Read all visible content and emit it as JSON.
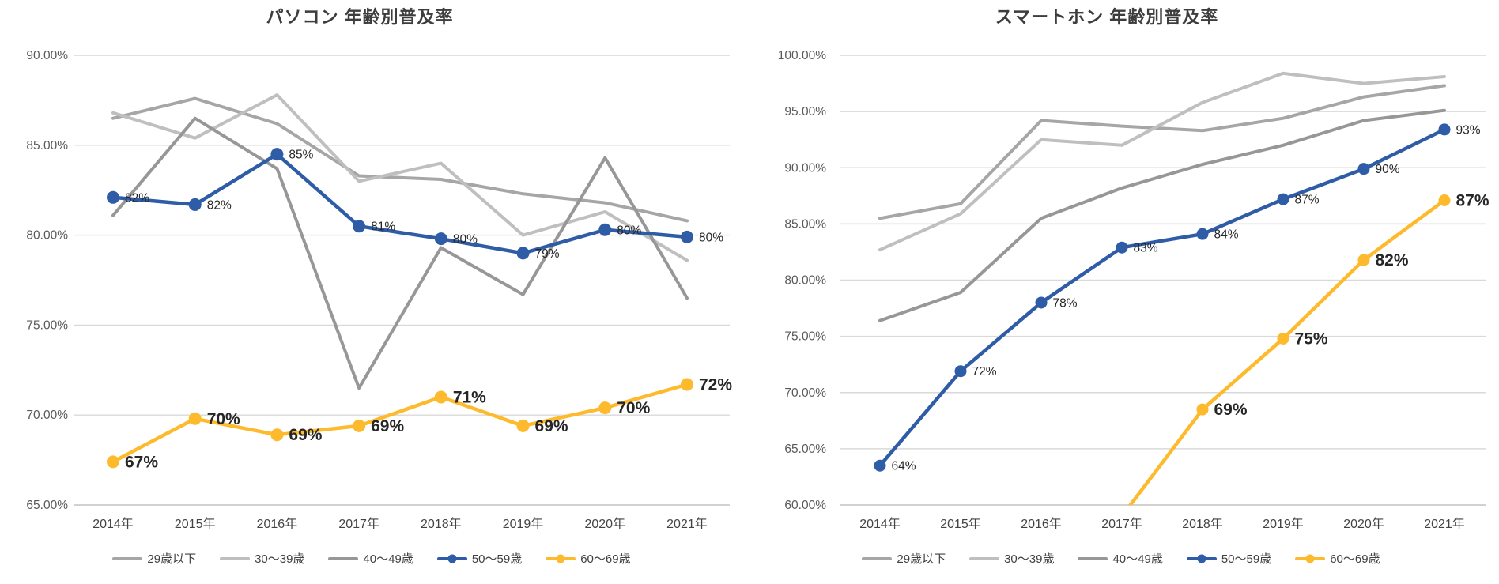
{
  "page": {
    "background": "#ffffff",
    "description": "Two side-by-side line charts of device penetration rate by age group in Japan, 2014-2021"
  },
  "chart_data": [
    {
      "type": "line",
      "title": "パソコン 年齢別普及率",
      "categories": [
        "2014年",
        "2015年",
        "2016年",
        "2017年",
        "2018年",
        "2019年",
        "2020年",
        "2021年"
      ],
      "y_axis": {
        "min": 65,
        "max": 90,
        "step": 5,
        "tick_labels": [
          "90.00%",
          "85.00%",
          "80.00%",
          "75.00%",
          "70.00%",
          "65.00%"
        ]
      },
      "grid": true,
      "legend_position": "bottom",
      "series": [
        {
          "name": "29歳以下",
          "color": "#a6a6a6",
          "marker": false,
          "values": [
            86.5,
            87.6,
            86.2,
            83.3,
            83.1,
            82.3,
            81.8,
            80.8
          ],
          "labels": null,
          "label_size": null
        },
        {
          "name": "30〜39歳",
          "color": "#bfbfbf",
          "marker": false,
          "values": [
            86.8,
            85.4,
            87.8,
            83.0,
            84.0,
            80.0,
            81.3,
            78.6
          ],
          "labels": null,
          "label_size": null
        },
        {
          "name": "40〜49歳",
          "color": "#979797",
          "marker": false,
          "values": [
            81.1,
            86.5,
            83.7,
            71.5,
            79.3,
            76.7,
            84.3,
            76.5
          ],
          "labels": null,
          "label_size": null
        },
        {
          "name": "50〜59歳",
          "color": "#2e5ca6",
          "marker": true,
          "values": [
            82.1,
            81.7,
            84.5,
            80.5,
            79.8,
            79.0,
            80.3,
            79.9
          ],
          "labels": [
            "82%",
            "82%",
            "85%",
            "81%",
            "80%",
            "79%",
            "80%",
            "80%"
          ],
          "label_size": "small"
        },
        {
          "name": "60〜69歳",
          "color": "#fdba2d",
          "marker": true,
          "values": [
            67.4,
            69.8,
            68.9,
            69.4,
            71.0,
            69.4,
            70.4,
            71.7
          ],
          "labels": [
            "67%",
            "70%",
            "69%",
            "69%",
            "71%",
            "69%",
            "70%",
            "72%"
          ],
          "label_size": "large"
        }
      ]
    },
    {
      "type": "line",
      "title": "スマートホン 年齢別普及率",
      "categories": [
        "2014年",
        "2015年",
        "2016年",
        "2017年",
        "2018年",
        "2019年",
        "2020年",
        "2021年"
      ],
      "y_axis": {
        "min": 60,
        "max": 100,
        "step": 5,
        "tick_labels": [
          "100.00%",
          "95.00%",
          "90.00%",
          "85.00%",
          "80.00%",
          "75.00%",
          "70.00%",
          "65.00%",
          "60.00%"
        ]
      },
      "grid": true,
      "legend_position": "bottom",
      "series": [
        {
          "name": "29歳以下",
          "color": "#a6a6a6",
          "marker": false,
          "values": [
            85.5,
            86.8,
            94.2,
            93.7,
            93.3,
            94.4,
            96.3,
            97.3
          ],
          "labels": null,
          "label_size": null
        },
        {
          "name": "30〜39歳",
          "color": "#bfbfbf",
          "marker": false,
          "values": [
            82.7,
            85.9,
            92.5,
            92.0,
            95.8,
            98.4,
            97.5,
            98.1
          ],
          "labels": null,
          "label_size": null
        },
        {
          "name": "40〜49歳",
          "color": "#979797",
          "marker": false,
          "values": [
            76.4,
            78.9,
            85.5,
            88.2,
            90.3,
            92.0,
            94.2,
            95.1
          ],
          "labels": null,
          "label_size": null
        },
        {
          "name": "50〜59歳",
          "color": "#2e5ca6",
          "marker": true,
          "values": [
            63.5,
            71.9,
            78.0,
            82.9,
            84.1,
            87.2,
            89.9,
            93.4
          ],
          "labels": [
            "64%",
            "72%",
            "78%",
            "83%",
            "84%",
            "87%",
            "90%",
            "93%"
          ],
          "label_size": "small"
        },
        {
          "name": "60〜69歳",
          "color": "#fdba2d",
          "marker": true,
          "values": [
            null,
            null,
            null,
            59.0,
            68.5,
            74.8,
            81.8,
            87.1
          ],
          "labels": [
            null,
            null,
            null,
            null,
            "69%",
            "75%",
            "82%",
            "87%"
          ],
          "label_size": "large"
        }
      ]
    }
  ]
}
